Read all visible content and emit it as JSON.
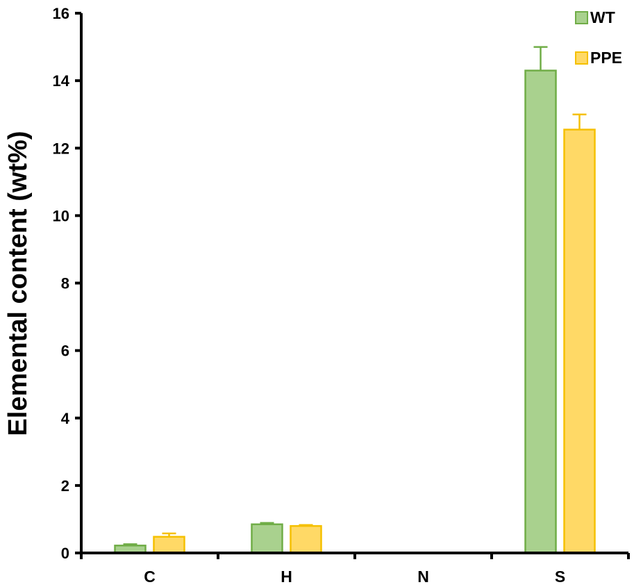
{
  "chart_data": {
    "type": "bar",
    "categories": [
      "C",
      "H",
      "N",
      "S"
    ],
    "series": [
      {
        "name": "WT",
        "values": [
          0.22,
          0.85,
          0,
          14.3
        ],
        "errors": [
          0.04,
          0.04,
          0,
          0.7
        ],
        "fill": "#a9d18e",
        "stroke": "#70ad47"
      },
      {
        "name": "PPE",
        "values": [
          0.48,
          0.8,
          0,
          12.55
        ],
        "errors": [
          0.1,
          0.03,
          0,
          0.45
        ],
        "fill": "#ffd966",
        "stroke": "#f5c000"
      }
    ],
    "title": "",
    "xlabel": "",
    "ylabel": "Elemental content (wt%)",
    "ylim": [
      0,
      16
    ],
    "yticks": [
      0,
      2,
      4,
      6,
      8,
      10,
      12,
      14,
      16
    ],
    "grid": false,
    "legend_position": "top-right"
  }
}
